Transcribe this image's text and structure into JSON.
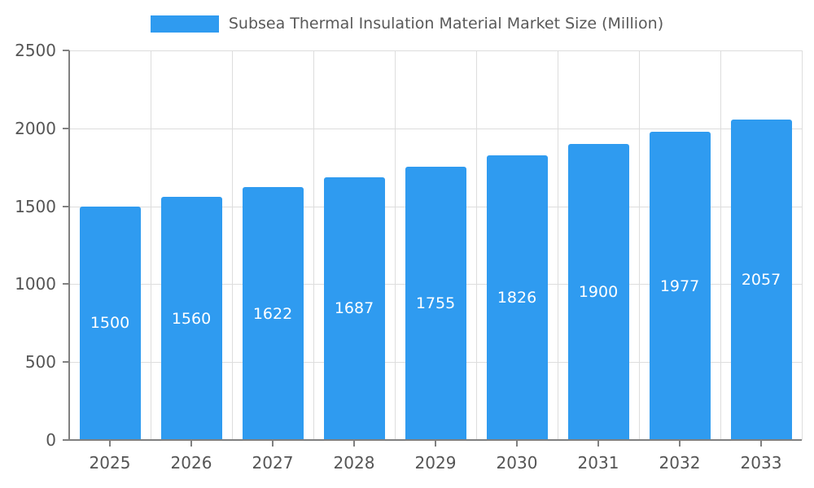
{
  "legend": {
    "title": "Subsea Thermal Insulation Material Market Size (Million)"
  },
  "colors": {
    "bar": "#2F9BF0",
    "grid": "#DDDDDD",
    "axis": "#808080",
    "tick_label": "#555555",
    "bar_label": "#FFFFFF",
    "title": "#595959",
    "background": "#FFFFFF"
  },
  "chart_data": {
    "type": "bar",
    "title": "Subsea Thermal Insulation Material Market Size (Million)",
    "categories": [
      "2025",
      "2026",
      "2027",
      "2028",
      "2029",
      "2030",
      "2031",
      "2032",
      "2033"
    ],
    "values": [
      1500,
      1560,
      1622,
      1687,
      1755,
      1826,
      1900,
      1977,
      2057
    ],
    "xlabel": "",
    "ylabel": "",
    "ylim": [
      0,
      2500
    ],
    "yticks": [
      0,
      500,
      1000,
      1500,
      2000,
      2500
    ],
    "grid": true,
    "legend_position": "top",
    "bar_labels_inside": true,
    "bar_label_position": "middle"
  }
}
